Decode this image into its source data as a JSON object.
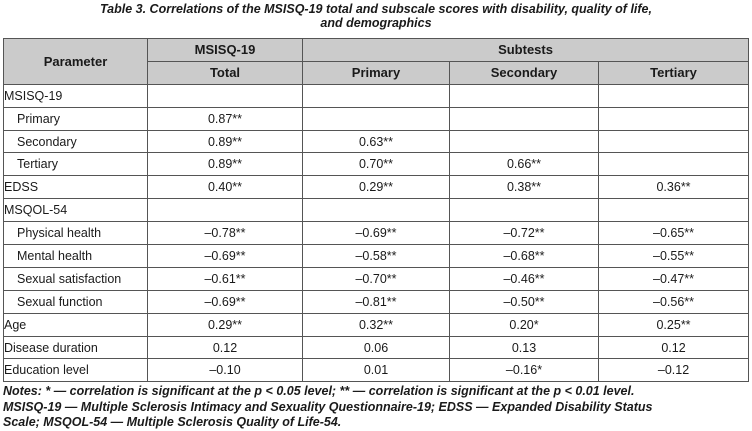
{
  "caption": {
    "line1": "Table 3. Correlations of the MSISQ-19 total and subscale scores with disability, quality of life,",
    "line2": "and demographics"
  },
  "header": {
    "parameter": "Parameter",
    "msisq": "MSISQ-19",
    "subtests": "Subtests",
    "total": "Total",
    "primary": "Primary",
    "secondary": "Secondary",
    "tertiary": "Tertiary"
  },
  "rows": [
    {
      "label": "MSISQ-19",
      "indent": false,
      "total": "",
      "primary": "",
      "secondary": "",
      "tertiary": ""
    },
    {
      "label": "Primary",
      "indent": true,
      "total": "0.87**",
      "primary": "",
      "secondary": "",
      "tertiary": ""
    },
    {
      "label": "Secondary",
      "indent": true,
      "total": "0.89**",
      "primary": "0.63**",
      "secondary": "",
      "tertiary": ""
    },
    {
      "label": "Tertiary",
      "indent": true,
      "total": "0.89**",
      "primary": "0.70**",
      "secondary": "0.66**",
      "tertiary": ""
    },
    {
      "label": "EDSS",
      "indent": false,
      "total": "0.40**",
      "primary": "0.29**",
      "secondary": "0.38**",
      "tertiary": "0.36**"
    },
    {
      "label": "MSQOL-54",
      "indent": false,
      "total": "",
      "primary": "",
      "secondary": "",
      "tertiary": ""
    },
    {
      "label": "Physical health",
      "indent": true,
      "total": "–0.78**",
      "primary": "–0.69**",
      "secondary": "–0.72**",
      "tertiary": "–0.65**"
    },
    {
      "label": "Mental health",
      "indent": true,
      "total": "–0.69**",
      "primary": "–0.58**",
      "secondary": "–0.68**",
      "tertiary": "–0.55**"
    },
    {
      "label": "Sexual satisfaction",
      "indent": true,
      "total": "–0.61**",
      "primary": "–0.70**",
      "secondary": "–0.46**",
      "tertiary": "–0.47**"
    },
    {
      "label": "Sexual function",
      "indent": true,
      "total": "–0.69**",
      "primary": "–0.81**",
      "secondary": "–0.50**",
      "tertiary": "–0.56**"
    },
    {
      "label": "Age",
      "indent": false,
      "total": "0.29**",
      "primary": "0.32**",
      "secondary": "0.20*",
      "tertiary": "0.25**"
    },
    {
      "label": "Disease duration",
      "indent": false,
      "total": "0.12",
      "primary": "0.06",
      "secondary": "0.13",
      "tertiary": "0.12"
    },
    {
      "label": "Education level",
      "indent": false,
      "total": "–0.10",
      "primary": "0.01",
      "secondary": "–0.16*",
      "tertiary": "–0.12"
    }
  ],
  "notes": {
    "line1": "Notes: * — correlation is significant at the p < 0.05 level; ** — correlation is significant at the p < 0.01 level.",
    "line2": "MSISQ-19 — Multiple Sclerosis Intimacy and Sexuality Questionnaire-19; EDSS — Expanded Disability Status",
    "line3": "Scale; MSQOL-54 — Multiple Sclerosis Quality of Life-54."
  },
  "colors": {
    "header_bg": "#cbcbcb",
    "border": "#555555",
    "text": "#1a1a1a"
  }
}
